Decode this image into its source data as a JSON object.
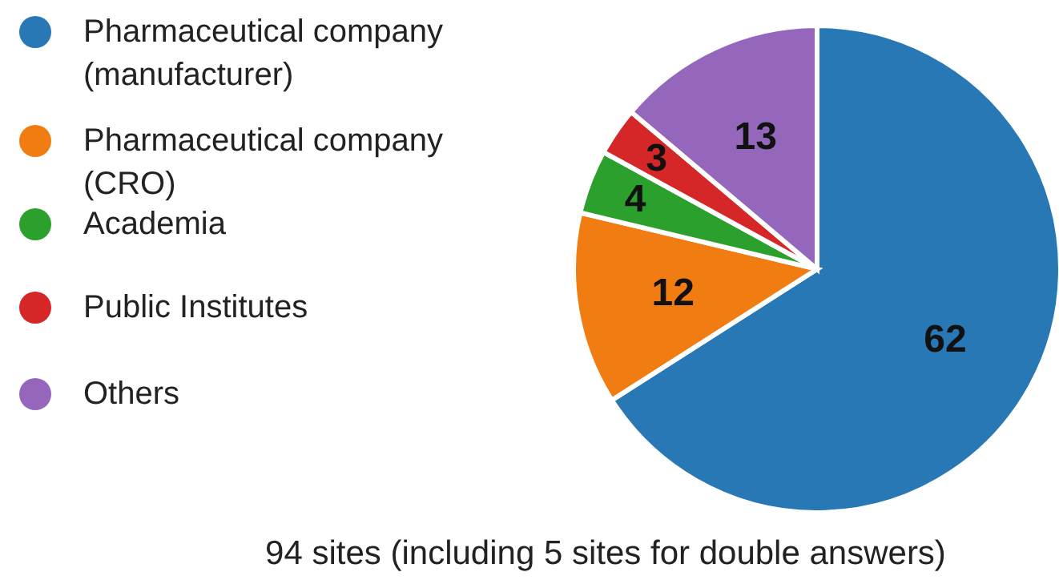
{
  "chart_data": {
    "type": "pie",
    "categories": [
      "Pharmaceutical company (manufacturer)",
      "Pharmaceutical company (CRO)",
      "Academia",
      "Public Institutes",
      "Others"
    ],
    "values": [
      62,
      12,
      4,
      3,
      13
    ],
    "colors": [
      "#2878b5",
      "#f07c12",
      "#2ca02c",
      "#d62728",
      "#9467bd"
    ],
    "data_labels": true,
    "legend": "left",
    "annotations": [
      "94 sites (including 5 sites for double answers)"
    ]
  }
}
